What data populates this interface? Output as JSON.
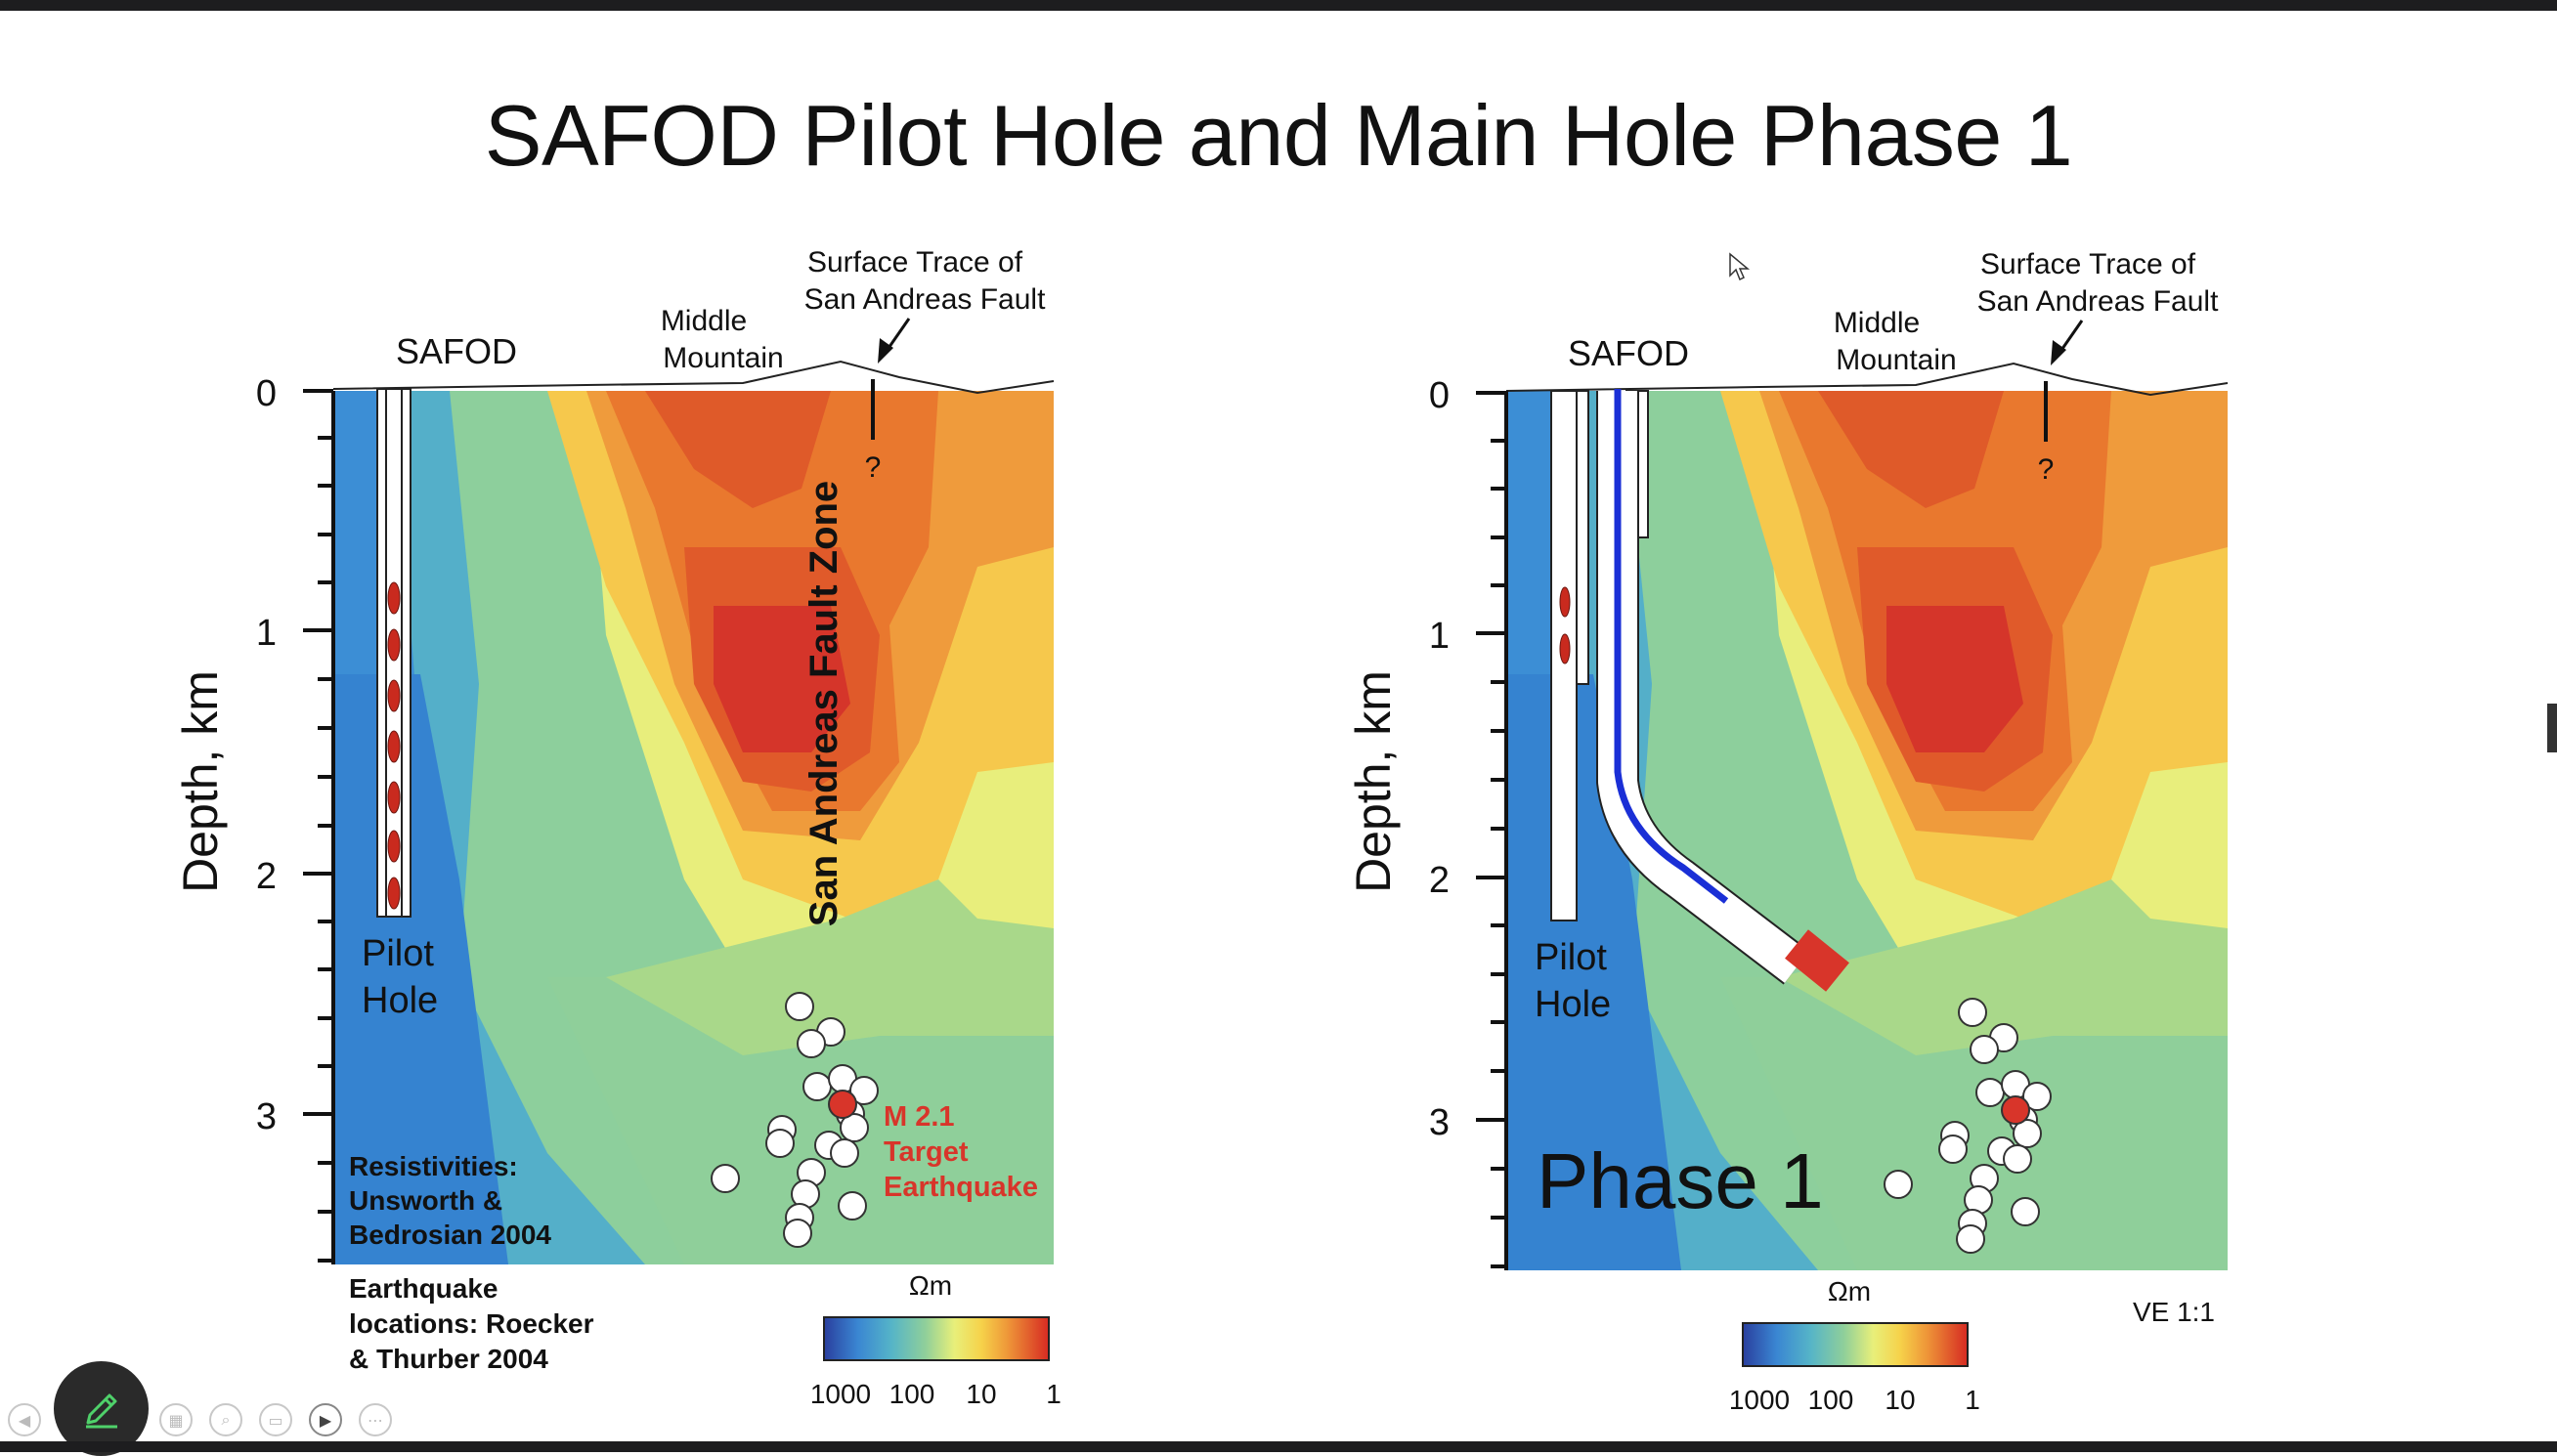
{
  "slide": {
    "title": "SAFOD Pilot Hole and Main Hole Phase 1"
  },
  "left_panel": {
    "safod_label": "SAFOD",
    "middle_mountain_label": [
      "Middle",
      "Mountain"
    ],
    "surface_trace_label": [
      "Surface Trace of",
      "San Andreas Fault"
    ],
    "question_mark": "?",
    "fault_zone_label": "San Andreas Fault Zone",
    "pilot_hole_label": [
      "Pilot",
      "Hole"
    ],
    "y_axis_label": "Depth, km",
    "y_ticks": [
      "0",
      "1",
      "2",
      "3"
    ],
    "resistivities_credit": [
      "Resistivities:",
      "Unsworth &",
      "Bedrosian 2004"
    ],
    "earthquake_credit": [
      "Earthquake",
      "locations: Roecker",
      "& Thurber 2004"
    ],
    "target_label": [
      "M 2.1",
      "Target",
      "Earthquake"
    ],
    "colorbar_unit": "Ωm",
    "colorbar_ticks": [
      "1000",
      "100",
      "10",
      "1"
    ]
  },
  "right_panel": {
    "safod_label": "SAFOD",
    "middle_mountain_label": [
      "Middle",
      "Mountain"
    ],
    "surface_trace_label": [
      "Surface Trace of",
      "San Andreas Fault"
    ],
    "question_mark": "?",
    "pilot_hole_label": [
      "Pilot",
      "Hole"
    ],
    "y_axis_label": "Depth, km",
    "y_ticks": [
      "0",
      "1",
      "2",
      "3"
    ],
    "phase_label": "Phase 1",
    "colorbar_unit": "Ωm",
    "colorbar_ticks": [
      "1000",
      "100",
      "10",
      "1"
    ],
    "ve_label": "VE 1:1"
  },
  "colors": {
    "deep_blue": "#3a86d2",
    "fault_red": "#d8352a",
    "main_hole_line": "#1a2fd6",
    "target_text": "#d8352a"
  },
  "toolbar": {
    "icons": [
      "prev-icon",
      "pages-icon",
      "zoom-icon",
      "subtitles-icon",
      "camera-icon",
      "more-icon",
      "pen-icon"
    ]
  }
}
